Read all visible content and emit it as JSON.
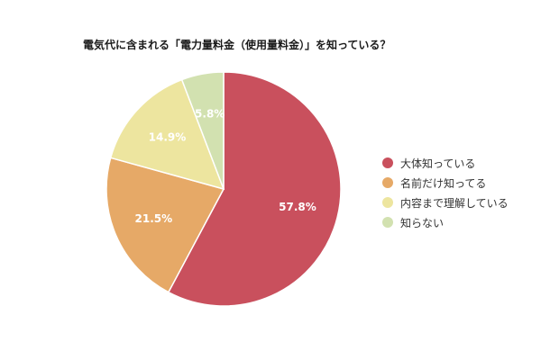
{
  "chart_data": {
    "type": "pie",
    "title": "電気代に含まれる「電力量料金（使用量料金）」を知っている？",
    "categories": [
      "大体知っている",
      "名前だけ知ってる",
      "内容まで理解している",
      "知らない"
    ],
    "values": [
      57.8,
      21.5,
      14.9,
      5.8
    ],
    "labels": [
      "57.8%",
      "21.5%",
      "14.9%",
      "5.8%"
    ],
    "colors": [
      "#c9505d",
      "#e6a967",
      "#ede59f",
      "#d2e1b0"
    ],
    "legend_position": "right"
  }
}
